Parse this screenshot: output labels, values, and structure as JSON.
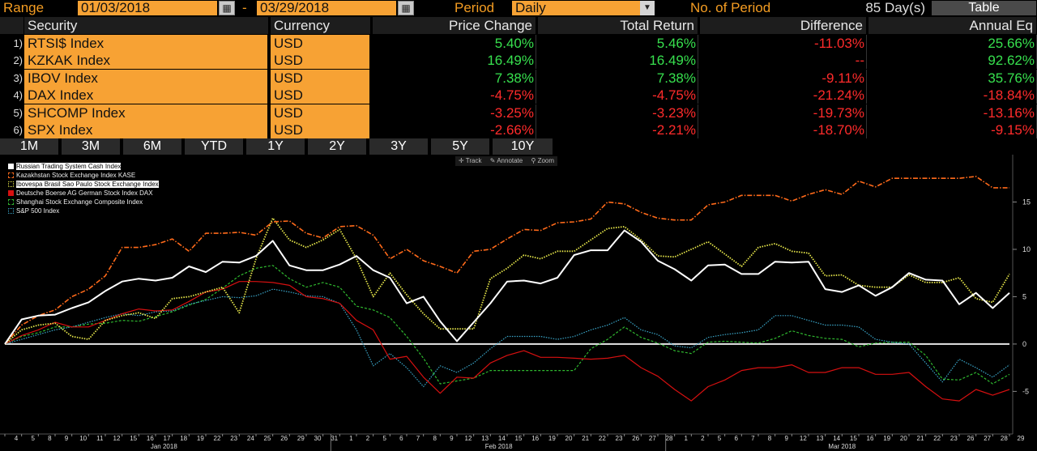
{
  "header": {
    "range_label": "Range",
    "start_date": "01/03/2018",
    "dash": "-",
    "end_date": "03/29/2018",
    "period_label": "Period",
    "period_value": "Daily",
    "no_of_period_label": "No. of Period",
    "days_value": "85 Day(s)",
    "table_button": "Table"
  },
  "table": {
    "columns": [
      "Security",
      "Currency",
      "Price Change",
      "Total Return",
      "Difference",
      "Annual Eq"
    ],
    "rows": [
      {
        "num": "1)",
        "security": "RTSI$ Index",
        "currency": "USD",
        "price_change": "5.40%",
        "total_return": "5.46%",
        "difference": "-11.03%",
        "annual_eq": "25.66%"
      },
      {
        "num": "2)",
        "security": "KZKAK Index",
        "currency": "USD",
        "price_change": "16.49%",
        "total_return": "16.49%",
        "difference": "--",
        "annual_eq": "92.62%"
      },
      {
        "num": "3)",
        "security": "IBOV Index",
        "currency": "USD",
        "price_change": "7.38%",
        "total_return": "7.38%",
        "difference": "-9.11%",
        "annual_eq": "35.76%"
      },
      {
        "num": "4)",
        "security": "DAX Index",
        "currency": "USD",
        "price_change": "-4.75%",
        "total_return": "-4.75%",
        "difference": "-21.24%",
        "annual_eq": "-18.84%"
      },
      {
        "num": "5)",
        "security": "SHCOMP Index",
        "currency": "USD",
        "price_change": "-3.25%",
        "total_return": "-3.23%",
        "difference": "-19.73%",
        "annual_eq": "-13.16%"
      },
      {
        "num": "6)",
        "security": "SPX Index",
        "currency": "USD",
        "price_change": "-2.66%",
        "total_return": "-2.21%",
        "difference": "-18.70%",
        "annual_eq": "-9.15%"
      }
    ]
  },
  "periods": [
    "1M",
    "3M",
    "6M",
    "YTD",
    "1Y",
    "2Y",
    "3Y",
    "5Y",
    "10Y"
  ],
  "chart_tools": {
    "track": "Track",
    "annotate": "Annotate",
    "zoom": "Zoom"
  },
  "colors": {
    "accent_orange": "#f7a234",
    "positive": "#37e04e",
    "negative": "#ff2b2b",
    "rtsi": "#ffffff",
    "kase": "#ff6a1a",
    "ibov": "#e8e84a",
    "dax": "#d61010",
    "shcomp": "#2fb82f",
    "spx": "#3aa6c9"
  },
  "chart_data": {
    "type": "line",
    "x": [
      "4",
      "5",
      "8",
      "9",
      "10",
      "11",
      "12",
      "15",
      "16",
      "17",
      "18",
      "19",
      "22",
      "23",
      "24",
      "25",
      "26",
      "29",
      "30",
      "31",
      "1",
      "2",
      "5",
      "6",
      "7",
      "8",
      "9",
      "12",
      "13",
      "14",
      "15",
      "16",
      "19",
      "20",
      "21",
      "22",
      "23",
      "26",
      "27",
      "28",
      "1",
      "2",
      "5",
      "6",
      "7",
      "8",
      "9",
      "12",
      "13",
      "14",
      "15",
      "16",
      "19",
      "20",
      "21",
      "22",
      "23",
      "26",
      "27",
      "28",
      "29"
    ],
    "x_groups": [
      {
        "label": "Jan 2018",
        "from": 0,
        "to": 19
      },
      {
        "label": "Feb 2018",
        "from": 20,
        "to": 39
      },
      {
        "label": "Mar 2018",
        "from": 40,
        "to": 60
      }
    ],
    "yticks": [
      -5,
      0,
      5,
      10,
      15
    ],
    "ylim": [
      -9.5,
      20
    ],
    "grid": false,
    "legend": "top-left",
    "series": [
      {
        "name": "Russian Trading System Cash Index",
        "color": "#ffffff",
        "style": "solid",
        "width": 2,
        "values": [
          0,
          2.6,
          3.0,
          3.1,
          3.8,
          4.4,
          5.6,
          6.6,
          6.9,
          6.7,
          7.0,
          8.2,
          7.6,
          8.7,
          8.6,
          9.3,
          10.9,
          8.3,
          7.8,
          7.8,
          8.4,
          9.3,
          7.8,
          7.0,
          4.3,
          5.0,
          2.4,
          0.3,
          2.3,
          4.3,
          6.6,
          6.7,
          6.4,
          7.0,
          9.4,
          9.9,
          9.9,
          12.0,
          10.8,
          8.8,
          7.9,
          6.7,
          8.3,
          8.4,
          7.4,
          7.4,
          8.7,
          8.6,
          8.7,
          5.8,
          5.5,
          6.2,
          5.1,
          6.0,
          7.5,
          6.8,
          6.7,
          4.2,
          5.4,
          3.8,
          5.4
        ]
      },
      {
        "name": "Kazakhstan Stock Exchange Index KASE",
        "color": "#ff6a1a",
        "style": "dashdot",
        "width": 1.6,
        "values": [
          0,
          2.0,
          3.0,
          3.6,
          5.0,
          5.8,
          7.2,
          10.2,
          10.2,
          10.5,
          11.1,
          9.8,
          11.7,
          11.7,
          11.8,
          11.5,
          12.9,
          13.0,
          11.7,
          11.2,
          12.4,
          12.5,
          11.5,
          9.0,
          10.0,
          8.8,
          8.2,
          7.5,
          9.8,
          10.0,
          11.1,
          12.1,
          12.0,
          12.8,
          12.9,
          13.2,
          15.0,
          14.8,
          13.9,
          13.3,
          13.1,
          13.1,
          14.7,
          15.0,
          15.7,
          15.7,
          15.7,
          15.1,
          15.8,
          16.3,
          15.8,
          17.2,
          16.6,
          17.5,
          17.5,
          17.5,
          17.5,
          17.5,
          17.7,
          16.5,
          16.5
        ]
      },
      {
        "name": "Ibovespa Brasil Sao Paulo Stock Exchange Index",
        "color": "#e8e84a",
        "style": "dotted",
        "width": 1.8,
        "values": [
          0,
          1.5,
          2.0,
          2.2,
          0.8,
          0.5,
          2.5,
          3.0,
          3.3,
          2.7,
          4.8,
          5.0,
          5.5,
          6.0,
          3.3,
          9.0,
          13.3,
          11.0,
          10.2,
          11.0,
          12.1,
          9.0,
          5.0,
          7.5,
          5.2,
          3.2,
          1.6,
          1.6,
          1.6,
          6.9,
          8.0,
          9.4,
          9.0,
          9.8,
          9.8,
          11.0,
          12.2,
          12.4,
          11.0,
          9.3,
          9.2,
          10.0,
          10.8,
          9.5,
          8.2,
          10.2,
          10.6,
          9.8,
          9.6,
          7.2,
          7.3,
          6.2,
          6.0,
          6.0,
          7.3,
          6.5,
          6.5,
          7.0,
          4.8,
          4.4,
          7.4
        ]
      },
      {
        "name": "Deutsche Boerse AG German Stock Index DAX",
        "color": "#d61010",
        "style": "solid",
        "width": 1.2,
        "values": [
          0,
          0.9,
          1.5,
          2.3,
          1.8,
          1.8,
          2.5,
          3.2,
          3.7,
          3.5,
          3.6,
          4.5,
          5.5,
          5.8,
          6.6,
          6.6,
          6.5,
          6.2,
          5.0,
          4.8,
          4.3,
          2.5,
          1.5,
          -1.6,
          -1.3,
          -3.5,
          -5.2,
          -3.5,
          -3.6,
          -2.0,
          -1.2,
          -0.7,
          -1.4,
          -1.4,
          -1.5,
          -1.6,
          -1.5,
          -1.2,
          -2.5,
          -3.4,
          -4.8,
          -6.0,
          -4.5,
          -3.8,
          -2.8,
          -2.5,
          -2.5,
          -2.2,
          -3.0,
          -3.0,
          -2.5,
          -2.5,
          -3.2,
          -3.2,
          -3.0,
          -4.5,
          -5.8,
          -6.0,
          -4.8,
          -5.4,
          -4.8
        ]
      },
      {
        "name": "Shanghai Stock Exchange Composite Index",
        "color": "#2fb82f",
        "style": "dashed",
        "width": 1.2,
        "values": [
          0,
          0.8,
          1.2,
          1.8,
          1.8,
          2.1,
          2.2,
          2.5,
          2.4,
          2.9,
          3.4,
          4.1,
          4.7,
          5.9,
          7.2,
          8.0,
          8.3,
          6.9,
          6.0,
          6.5,
          6.0,
          4.0,
          3.6,
          2.8,
          0.8,
          -1.5,
          -4.2,
          -3.9,
          -3.6,
          -2.8,
          -2.8,
          -2.8,
          -2.8,
          -2.8,
          -2.8,
          -0.5,
          0.5,
          1.8,
          0.7,
          0.1,
          -0.7,
          -1.0,
          0.2,
          0.3,
          0.2,
          0.1,
          0.6,
          1.4,
          0.9,
          0.6,
          0.5,
          -0.3,
          0.1,
          0.2,
          0.2,
          -1.2,
          -3.7,
          -3.8,
          -3.0,
          -4.2,
          -3.2
        ]
      },
      {
        "name": "S&P 500 Index",
        "color": "#3aa6c9",
        "style": "dotted",
        "width": 1.2,
        "values": [
          0,
          0.5,
          1.0,
          1.5,
          1.8,
          2.3,
          2.8,
          3.2,
          3.0,
          3.4,
          3.5,
          4.2,
          4.6,
          5.0,
          4.9,
          5.1,
          5.8,
          5.5,
          5.1,
          5.0,
          4.3,
          1.5,
          -2.3,
          -1.0,
          -2.5,
          -4.5,
          -2.3,
          -3.0,
          -2.0,
          -0.5,
          0.8,
          0.8,
          0.8,
          0.5,
          0.8,
          1.5,
          2.0,
          2.8,
          1.5,
          1.0,
          -0.2,
          -0.4,
          0.7,
          1.0,
          1.2,
          1.5,
          3.0,
          3.0,
          2.5,
          2.0,
          2.0,
          1.8,
          0.5,
          0.2,
          0,
          -2.0,
          -4.0,
          -1.6,
          -2.5,
          -3.5,
          -2.2
        ]
      }
    ]
  }
}
